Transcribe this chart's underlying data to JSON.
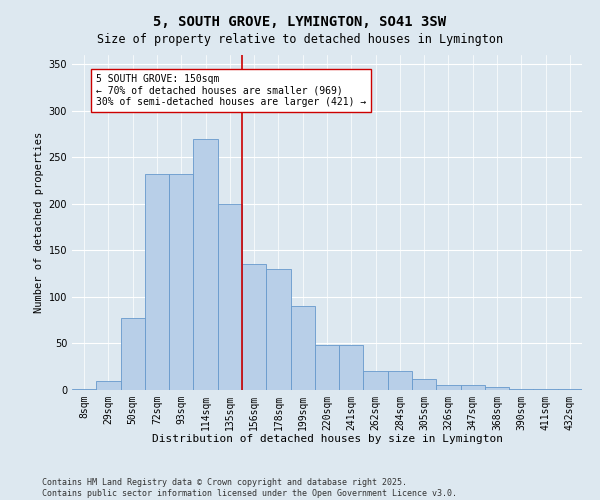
{
  "title": "5, SOUTH GROVE, LYMINGTON, SO41 3SW",
  "subtitle": "Size of property relative to detached houses in Lymington",
  "xlabel": "Distribution of detached houses by size in Lymington",
  "ylabel": "Number of detached properties",
  "bin_labels": [
    "8sqm",
    "29sqm",
    "50sqm",
    "72sqm",
    "93sqm",
    "114sqm",
    "135sqm",
    "156sqm",
    "178sqm",
    "199sqm",
    "220sqm",
    "241sqm",
    "262sqm",
    "284sqm",
    "305sqm",
    "326sqm",
    "347sqm",
    "368sqm",
    "390sqm",
    "411sqm",
    "432sqm"
  ],
  "bar_values": [
    1,
    10,
    77,
    232,
    232,
    270,
    200,
    135,
    130,
    90,
    48,
    48,
    20,
    20,
    12,
    5,
    5,
    3,
    1,
    1,
    1
  ],
  "bar_color": "#b8cfe8",
  "bar_edge_color": "#6699cc",
  "vline_color": "#cc0000",
  "vline_index": 6.5,
  "annotation_text": "5 SOUTH GROVE: 150sqm\n← 70% of detached houses are smaller (969)\n30% of semi-detached houses are larger (421) →",
  "annotation_box_color": "#ffffff",
  "annotation_box_edge": "#cc0000",
  "ylim": [
    0,
    360
  ],
  "yticks": [
    0,
    50,
    100,
    150,
    200,
    250,
    300,
    350
  ],
  "bg_color": "#dde8f0",
  "footer": "Contains HM Land Registry data © Crown copyright and database right 2025.\nContains public sector information licensed under the Open Government Licence v3.0.",
  "title_fontsize": 10,
  "subtitle_fontsize": 8.5,
  "xlabel_fontsize": 8,
  "ylabel_fontsize": 7.5,
  "tick_fontsize": 7,
  "annotation_fontsize": 7,
  "footer_fontsize": 6
}
